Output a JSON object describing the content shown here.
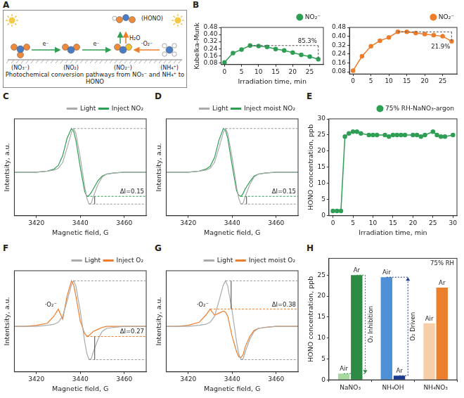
{
  "diagram": {
    "panel": "A",
    "caption": "Photochemical conversion pathways from NO₃⁻ and NH₄⁺ to HONO",
    "species": [
      "(NO₃⁻)",
      "(NO₂)",
      "(NO₂⁻)",
      "(NH₄⁺)",
      "(HONO)"
    ],
    "arrows": [
      "e⁻",
      "e⁻",
      "H₂O",
      "·O₂⁻"
    ]
  },
  "chart_data": [
    {
      "panel": "B",
      "type": "line",
      "x_label": "Irradiation time, min",
      "y_label": "Kubelka-Munk",
      "x": [
        0,
        2.5,
        5,
        7.5,
        10,
        12.5,
        15,
        17.5,
        20,
        22.5,
        25,
        27.5
      ],
      "series": [
        {
          "name": "NO₂⁻",
          "color": "#2f9e55",
          "marker": "circle",
          "values": [
            0.085,
            0.19,
            0.23,
            0.275,
            0.27,
            0.26,
            0.235,
            0.22,
            0.195,
            0.17,
            0.15,
            0.12
          ]
        }
      ],
      "xlim": [
        -1,
        29
      ],
      "xticks": [
        0,
        5,
        10,
        15,
        20,
        25
      ],
      "ylim": [
        0.06,
        0.48
      ],
      "yticks": [
        0.08,
        0.16,
        0.24,
        0.32,
        {
          "value": 0.4,
          "label": "0.40"
        },
        0.48
      ],
      "grid": false,
      "legend": "top",
      "annotations": [
        {
          "text": "85.3%",
          "type": "drop"
        }
      ]
    },
    {
      "type": "line",
      "x": [
        0,
        2.5,
        5,
        7.5,
        10,
        12.5,
        15,
        17.5,
        20,
        22.5,
        25,
        27.5
      ],
      "series": [
        {
          "name": "NO₂⁻",
          "color": "#ee7d2b",
          "marker": "circle",
          "values": [
            0.09,
            0.22,
            0.31,
            0.36,
            0.39,
            0.44,
            0.44,
            0.43,
            0.42,
            0.41,
            0.4,
            0.355
          ]
        }
      ],
      "xlim": [
        -1,
        29
      ],
      "xticks": [
        0,
        5,
        10,
        15,
        20,
        25
      ],
      "ylim": [
        0.06,
        0.48
      ],
      "yticks": [
        0.08,
        0.16,
        0.24,
        0.32,
        {
          "value": 0.4,
          "label": "0.40"
        },
        0.48
      ],
      "grid": false,
      "legend": "top",
      "annotations": [
        {
          "text": "21.9%",
          "type": "drop"
        }
      ]
    },
    {
      "panel": "C",
      "type": "line",
      "x_label": "Magnetic field, G",
      "y_label": "Intentsity, a.u.",
      "x": [
        3410,
        3415,
        3420,
        3425,
        3428,
        3430,
        3432,
        3434,
        3436,
        3437,
        3438,
        3440,
        3442,
        3443,
        3444,
        3445,
        3446,
        3448,
        3450,
        3452,
        3455,
        3460,
        3465,
        3470
      ],
      "series": [
        {
          "name": "Light",
          "color": "#aaaaaa",
          "values": [
            0.45,
            0.45,
            0.45,
            0.46,
            0.47,
            0.49,
            0.55,
            0.7,
            0.86,
            0.9,
            0.85,
            0.6,
            0.3,
            0.18,
            0.12,
            0.13,
            0.2,
            0.32,
            0.4,
            0.43,
            0.44,
            0.45,
            0.45,
            0.45
          ]
        },
        {
          "name": "Inject NO₂",
          "color": "#2f9e55",
          "values": [
            0.45,
            0.45,
            0.45,
            0.46,
            0.48,
            0.52,
            0.62,
            0.8,
            0.9,
            0.87,
            0.78,
            0.5,
            0.25,
            0.2,
            0.21,
            0.24,
            0.28,
            0.36,
            0.41,
            0.43,
            0.44,
            0.45,
            0.45,
            0.45
          ]
        }
      ],
      "xlim": [
        3410,
        3470
      ],
      "xticks": [
        3420,
        3440,
        3460
      ],
      "ylim": [
        0,
        1
      ],
      "yticks": [],
      "tick_labels": "x",
      "grid": false,
      "legend": "top",
      "annotations": [
        {
          "text": "ΔI=0.15",
          "type": "delta"
        }
      ]
    },
    {
      "panel": "D",
      "type": "line",
      "x_label": "Magnetic field, G",
      "y_label": "Intentsity, a.u.",
      "x": [
        3410,
        3415,
        3420,
        3425,
        3428,
        3430,
        3432,
        3434,
        3436,
        3437,
        3438,
        3440,
        3442,
        3443,
        3444,
        3445,
        3446,
        3448,
        3450,
        3452,
        3455,
        3460,
        3465,
        3470
      ],
      "series": [
        {
          "name": "Light",
          "color": "#aaaaaa",
          "values": [
            0.45,
            0.45,
            0.45,
            0.46,
            0.47,
            0.49,
            0.55,
            0.7,
            0.86,
            0.9,
            0.85,
            0.6,
            0.3,
            0.18,
            0.12,
            0.13,
            0.2,
            0.32,
            0.4,
            0.43,
            0.44,
            0.45,
            0.45,
            0.45
          ]
        },
        {
          "name": "Inject moist NO₂",
          "color": "#2f9e55",
          "values": [
            0.45,
            0.45,
            0.45,
            0.46,
            0.48,
            0.51,
            0.6,
            0.78,
            0.9,
            0.88,
            0.8,
            0.52,
            0.26,
            0.21,
            0.2,
            0.23,
            0.28,
            0.35,
            0.41,
            0.43,
            0.44,
            0.45,
            0.45,
            0.45
          ]
        }
      ],
      "xlim": [
        3410,
        3470
      ],
      "xticks": [
        3420,
        3440,
        3460
      ],
      "ylim": [
        0,
        1
      ],
      "yticks": [],
      "tick_labels": "x",
      "grid": false,
      "legend": "top",
      "annotations": [
        {
          "text": "ΔI=0.15",
          "type": "delta"
        }
      ]
    },
    {
      "panel": "E",
      "type": "line",
      "x_label": "Irradiation time, min",
      "y_label": "HONO concentration, ppb",
      "x": [
        0,
        1,
        2,
        3,
        4,
        5,
        6,
        7,
        9,
        10,
        11,
        13,
        14,
        15,
        16,
        17,
        18,
        20,
        21,
        22,
        23,
        25,
        26,
        27,
        28,
        30
      ],
      "series": [
        {
          "name": "75% RH-NaNO₃-argon",
          "color": "#2f9e55",
          "marker": "circle",
          "values": [
            1.5,
            1.5,
            1.5,
            24.5,
            25.5,
            26,
            26,
            25.5,
            25,
            25,
            25,
            25,
            24.5,
            25,
            25,
            25,
            25,
            25,
            25,
            24.5,
            25,
            26,
            25,
            24.5,
            24.5,
            25
          ]
        }
      ],
      "xlim": [
        -1,
        31
      ],
      "xticks": [
        0,
        5,
        10,
        15,
        20,
        25,
        30
      ],
      "ylim": [
        0,
        30
      ],
      "yticks": [
        0,
        5,
        10,
        15,
        20,
        25,
        30
      ],
      "grid": false,
      "legend": "top"
    },
    {
      "panel": "F",
      "type": "line",
      "x_label": "Magnetic field, G",
      "y_label": "Intentsity, a.u.",
      "x": [
        3410,
        3415,
        3420,
        3425,
        3428,
        3430,
        3432,
        3434,
        3436,
        3437,
        3438,
        3440,
        3442,
        3443,
        3444,
        3445,
        3446,
        3448,
        3450,
        3452,
        3455,
        3460,
        3465,
        3470
      ],
      "series": [
        {
          "name": "Light",
          "color": "#aaaaaa",
          "values": [
            0.45,
            0.45,
            0.45,
            0.46,
            0.47,
            0.49,
            0.55,
            0.7,
            0.86,
            0.9,
            0.85,
            0.6,
            0.3,
            0.18,
            0.12,
            0.13,
            0.2,
            0.32,
            0.4,
            0.43,
            0.44,
            0.45,
            0.45,
            0.45
          ]
        },
        {
          "name": "Inject O₂",
          "color": "#ee7d2b",
          "values": [
            0.45,
            0.45,
            0.46,
            0.48,
            0.55,
            0.62,
            0.52,
            0.75,
            0.9,
            0.86,
            0.75,
            0.5,
            0.38,
            0.35,
            0.36,
            0.38,
            0.4,
            0.42,
            0.44,
            0.45,
            0.45,
            0.45,
            0.45,
            0.45
          ]
        }
      ],
      "xlim": [
        3410,
        3470
      ],
      "xticks": [
        3420,
        3440,
        3460
      ],
      "ylim": [
        0,
        1
      ],
      "yticks": [],
      "tick_labels": "x",
      "grid": false,
      "legend": "top",
      "annotations": [
        {
          "text": "ΔI=0.27",
          "type": "delta"
        },
        {
          "text": "·O₂⁻",
          "type": "label",
          "x": 3430
        }
      ]
    },
    {
      "panel": "G",
      "type": "line",
      "x_label": "Magnetic field, G",
      "y_label": "Intentsity, a.u.",
      "x": [
        3410,
        3415,
        3420,
        3425,
        3428,
        3430,
        3432,
        3434,
        3436,
        3437,
        3438,
        3440,
        3442,
        3443,
        3444,
        3445,
        3446,
        3448,
        3450,
        3452,
        3455,
        3460,
        3465,
        3470
      ],
      "series": [
        {
          "name": "Light",
          "color": "#aaaaaa",
          "values": [
            0.45,
            0.45,
            0.45,
            0.46,
            0.47,
            0.49,
            0.55,
            0.7,
            0.86,
            0.9,
            0.85,
            0.6,
            0.3,
            0.18,
            0.12,
            0.13,
            0.2,
            0.32,
            0.4,
            0.43,
            0.44,
            0.45,
            0.45,
            0.45
          ]
        },
        {
          "name": "Inject moist O₂",
          "color": "#ee7d2b",
          "values": [
            0.45,
            0.45,
            0.46,
            0.49,
            0.56,
            0.62,
            0.56,
            0.58,
            0.6,
            0.59,
            0.55,
            0.35,
            0.2,
            0.15,
            0.14,
            0.17,
            0.25,
            0.35,
            0.41,
            0.43,
            0.44,
            0.45,
            0.45,
            0.45
          ]
        }
      ],
      "xlim": [
        3410,
        3470
      ],
      "xticks": [
        3420,
        3440,
        3460
      ],
      "ylim": [
        0,
        1
      ],
      "yticks": [],
      "tick_labels": "x",
      "grid": false,
      "legend": "top",
      "annotations": [
        {
          "text": "ΔI=0.38",
          "type": "delta"
        },
        {
          "text": "·O₂⁻",
          "type": "label",
          "x": 3430
        }
      ]
    },
    {
      "panel": "H",
      "type": "bar",
      "y_label": "HONO concentration, ppb",
      "categories": [
        "NaNO₃",
        "NH₄OH",
        "NH₄NO₃"
      ],
      "series": [
        {
          "name": "Air",
          "colors": [
            "#a6d8a0",
            "#4f8fd6",
            "#f6cfa8"
          ],
          "values": [
            1.5,
            24.5,
            13.5
          ]
        },
        {
          "name": "Ar",
          "colors": [
            "#2e8b45",
            "#1a3b8f",
            "#ec7f2c"
          ],
          "values": [
            25,
            1,
            22
          ]
        }
      ],
      "ylim": [
        0,
        29
      ],
      "yticks": [
        0,
        5,
        10,
        15,
        20,
        25
      ],
      "grid": false,
      "annotations": [
        {
          "text": "O₂ Inhibition",
          "type": "arrow",
          "category": "NaNO₃"
        },
        {
          "text": "O₂ Driven",
          "type": "arrow",
          "category": "NH₄OH"
        },
        {
          "text": "75% RH",
          "type": "note"
        }
      ]
    }
  ]
}
